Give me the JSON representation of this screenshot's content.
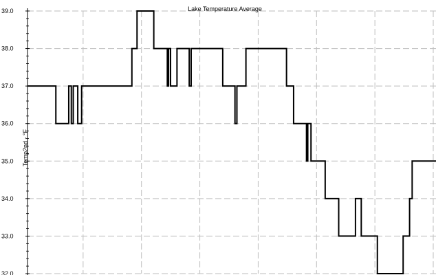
{
  "chart_data": {
    "type": "line",
    "title": "Lake Temperature Average",
    "ylabel": "Temp2nd - °F",
    "xlabel": "",
    "ylim": [
      32.0,
      39.0
    ],
    "xlim": [
      0,
      634
    ],
    "yticks": [
      "32.0",
      "33.0",
      "34.0",
      "35.0",
      "36.0",
      "37.0",
      "38.0",
      "39.0"
    ],
    "grid": true,
    "line_style": "step",
    "colors": {
      "line": "#000000",
      "grid": "#bdbdbd",
      "axis": "#000000"
    },
    "series": [
      {
        "x": [
          0,
          44,
          64,
          68,
          71,
          78,
          84,
          162,
          170,
          196,
          217,
          219,
          222,
          232,
          251,
          254,
          256,
          303,
          322,
          325,
          327,
          339,
          402,
          413,
          433,
          435,
          440,
          443,
          462,
          483,
          509,
          518,
          543,
          583,
          593,
          597,
          634
        ],
        "y": [
          37.0,
          36.0,
          37.0,
          36.0,
          37.0,
          36.0,
          37.0,
          38.0,
          39.0,
          38.0,
          37.0,
          38.0,
          37.0,
          38.0,
          37.0,
          38.0,
          38.0,
          37.0,
          36.0,
          37.0,
          37.0,
          38.0,
          37.0,
          36.0,
          35.0,
          36.0,
          35.0,
          35.0,
          34.0,
          33.0,
          34.0,
          33.0,
          32.0,
          33.0,
          34.0,
          35.0,
          35.0
        ]
      }
    ]
  }
}
